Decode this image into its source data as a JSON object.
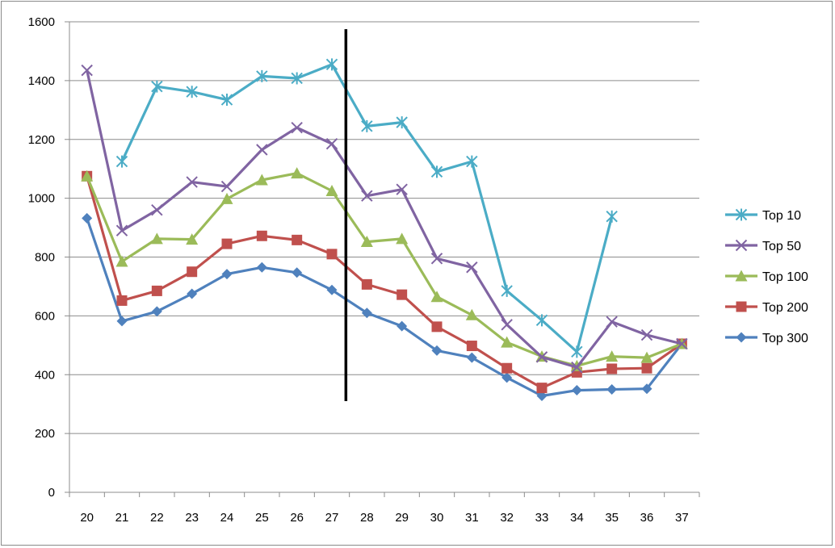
{
  "chart_data": {
    "type": "line",
    "title": "",
    "xlabel": "",
    "ylabel": "",
    "x": [
      20,
      21,
      22,
      23,
      24,
      25,
      26,
      27,
      28,
      29,
      30,
      31,
      32,
      33,
      34,
      35,
      36,
      37
    ],
    "ylim": [
      0,
      1600
    ],
    "yticks": [
      0,
      200,
      400,
      600,
      800,
      1000,
      1200,
      1400,
      1600
    ],
    "grid": "horizontal",
    "legend": "right",
    "vertical_marker": {
      "x": 27.4,
      "y_range": [
        310,
        1575
      ],
      "color": "#000000"
    },
    "series": [
      {
        "name": "Top 10",
        "color": "#4bacc6",
        "marker": "star",
        "values": [
          null,
          1125,
          1380,
          1362,
          1335,
          1415,
          1408,
          1455,
          1245,
          1258,
          1090,
          1125,
          685,
          585,
          478,
          938,
          null,
          null
        ]
      },
      {
        "name": "Top 50",
        "color": "#8064a2",
        "marker": "x",
        "values": [
          1435,
          890,
          960,
          1055,
          1040,
          1165,
          1240,
          1185,
          1008,
          1030,
          795,
          765,
          570,
          460,
          425,
          580,
          535,
          505
        ]
      },
      {
        "name": "Top 100",
        "color": "#9bbb59",
        "marker": "triangle",
        "values": [
          1075,
          785,
          862,
          860,
          998,
          1062,
          1085,
          1025,
          852,
          862,
          665,
          603,
          510,
          462,
          430,
          462,
          458,
          505
        ]
      },
      {
        "name": "Top 200",
        "color": "#c0504d",
        "marker": "square",
        "values": [
          1075,
          652,
          685,
          750,
          845,
          872,
          858,
          810,
          707,
          672,
          563,
          498,
          422,
          355,
          408,
          420,
          422,
          505
        ]
      },
      {
        "name": "Top 300",
        "color": "#4f81bd",
        "marker": "diamond",
        "values": [
          932,
          582,
          615,
          675,
          742,
          765,
          747,
          688,
          610,
          565,
          482,
          458,
          390,
          328,
          347,
          350,
          352,
          505
        ]
      }
    ]
  }
}
